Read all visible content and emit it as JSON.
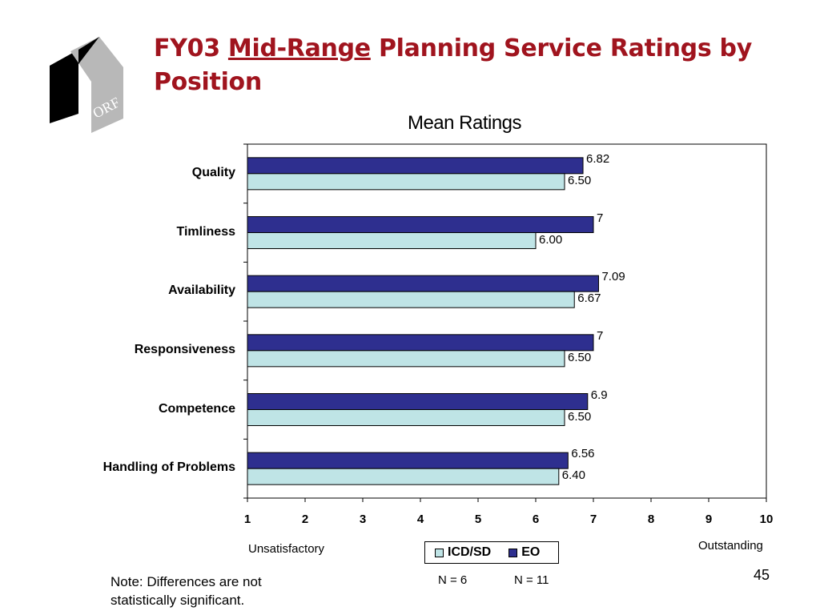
{
  "slide": {
    "title_prefix": "FY03",
    "title_underlined": "Mid-Range",
    "title_suffix": "Planning Service Ratings by Position",
    "page_number": "45",
    "note_line1": "Note:  Differences are not",
    "note_line2": "statistically significant.",
    "logo_text": "ORF"
  },
  "colors": {
    "title": "#a0141e",
    "eo": "#2e2f8f",
    "icd_sd": "#bfe4e6"
  },
  "chart_data": {
    "type": "bar",
    "orientation": "horizontal",
    "title": "Mean Ratings",
    "categories": [
      "Quality",
      "Timliness",
      "Availability",
      "Responsiveness",
      "Competence",
      "Handling of Problems"
    ],
    "series": [
      {
        "name": "EO",
        "values": [
          6.82,
          7,
          7.09,
          7,
          6.9,
          6.56
        ],
        "labels": [
          "6.82",
          "7",
          "7.09",
          "7",
          "6.9",
          "6.56"
        ]
      },
      {
        "name": "ICD/SD",
        "values": [
          6.5,
          6.0,
          6.67,
          6.5,
          6.5,
          6.4
        ],
        "labels": [
          "6.50",
          "6.00",
          "6.67",
          "6.50",
          "6.50",
          "6.40"
        ]
      }
    ],
    "xlim": [
      1,
      10
    ],
    "xticks": [
      "1",
      "2",
      "3",
      "4",
      "5",
      "6",
      "7",
      "8",
      "9",
      "10"
    ],
    "scale_low_label": "Unsatisfactory",
    "scale_high_label": "Outstanding",
    "legend": [
      {
        "name": "ICD/SD",
        "n": "N = 6"
      },
      {
        "name": "EO",
        "n": "N = 11"
      }
    ],
    "legend_placement": "bottom-center",
    "grid": false
  }
}
